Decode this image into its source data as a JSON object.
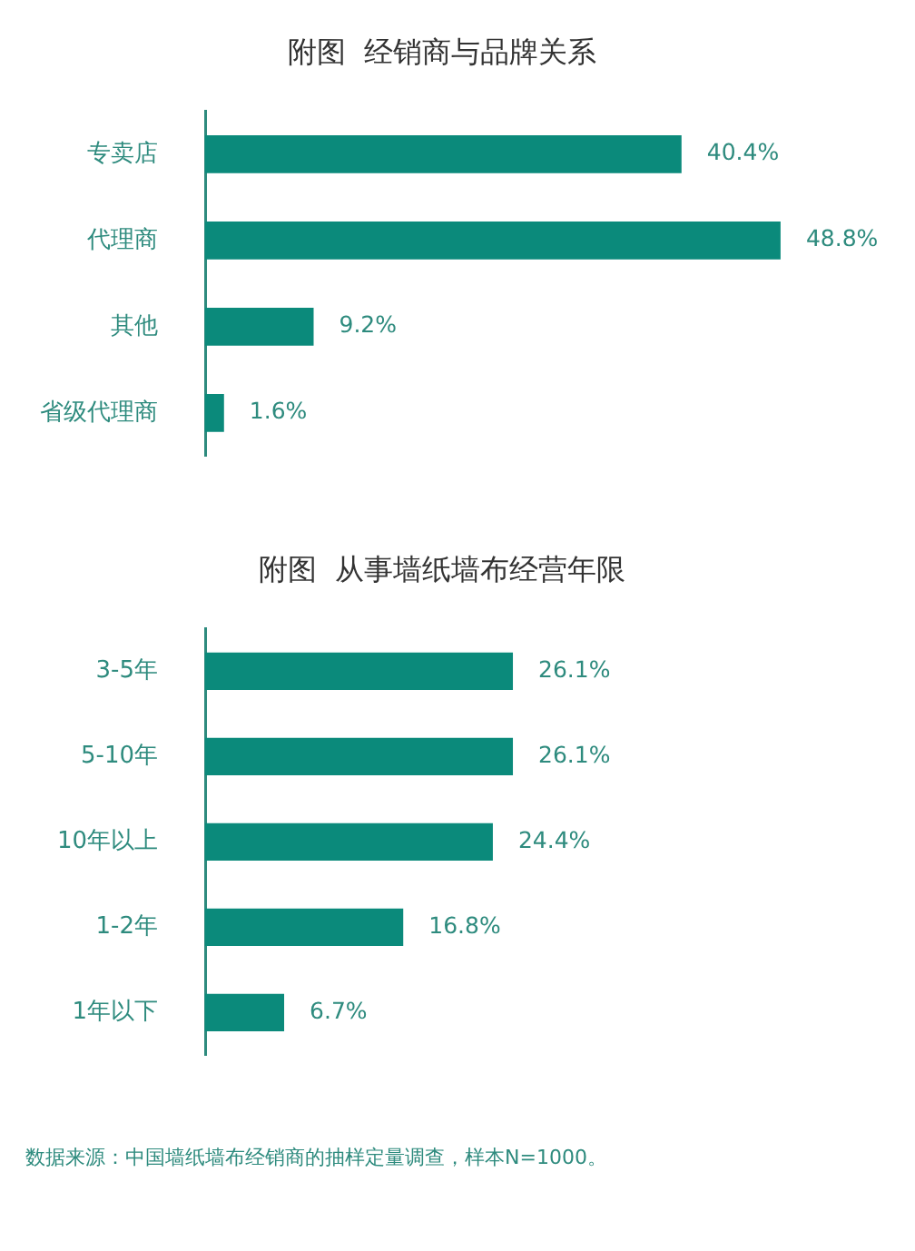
{
  "chart_data": [
    {
      "type": "bar",
      "orientation": "horizontal",
      "title": "附图  经销商与品牌关系",
      "categories": [
        "专卖店",
        "代理商",
        "其他",
        "省级代理商"
      ],
      "values": [
        40.4,
        48.8,
        9.2,
        1.6
      ],
      "color": "#0b8a7b",
      "value_labels": [
        "40.4%",
        "48.8%",
        "9.2%",
        "1.6%"
      ],
      "tick_labels": "y",
      "legend": false
    },
    {
      "type": "bar",
      "orientation": "horizontal",
      "title": "附图  从事墙纸墙布经营年限",
      "categories": [
        "3-5年",
        "5-10年",
        "10年以上",
        "1-2年",
        "1年以下"
      ],
      "values": [
        26.1,
        26.1,
        24.4,
        16.8,
        6.7
      ],
      "color": "#0b8a7b",
      "value_labels": [
        "26.1%",
        "26.1%",
        "24.4%",
        "16.8%",
        "6.7%"
      ],
      "tick_labels": "y",
      "legend": false,
      "annotations": [
        "数据来源：中国墙纸墙布经销商的抽样定量调查，样本N=1000。"
      ]
    }
  ]
}
